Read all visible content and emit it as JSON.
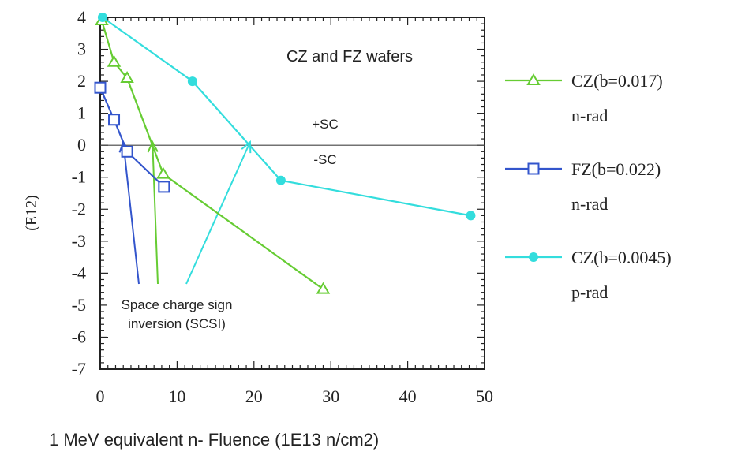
{
  "chart_data": {
    "type": "line",
    "title": "CZ and FZ wafers",
    "xlabel": "1 MeV equivalent n- Fluence (1E13 n/cm2)",
    "ylabel": "(E12)",
    "xlim": [
      0,
      50
    ],
    "ylim": [
      -7,
      4
    ],
    "xticks": [
      0,
      10,
      20,
      30,
      40,
      50
    ],
    "yticks": [
      -7,
      -6,
      -5,
      -4,
      -3,
      -2,
      -1,
      0,
      1,
      2,
      3,
      4
    ],
    "grid": false,
    "legend_position": "right",
    "series": [
      {
        "name": "CZ(b=0.017)",
        "name_line2": "n-rad",
        "marker": "triangle",
        "color": "#66cc33",
        "x": [
          0.2,
          1.8,
          3.5,
          8.2,
          29
        ],
        "y": [
          3.9,
          2.6,
          2.1,
          -0.9,
          -4.5
        ]
      },
      {
        "name": "FZ(b=0.022)",
        "name_line2": "n-rad",
        "marker": "square",
        "color": "#3355cc",
        "x": [
          0,
          1.8,
          3.5,
          8.3
        ],
        "y": [
          1.8,
          0.8,
          -0.2,
          -1.3
        ]
      },
      {
        "name": "CZ(b=0.0045)",
        "name_line2": "p-rad",
        "marker": "circle",
        "color": "#33dddd",
        "x": [
          0.3,
          12,
          23.5,
          48.2
        ],
        "y": [
          4.0,
          2.0,
          -1.1,
          -2.2
        ]
      }
    ],
    "annotations": {
      "above_zero": "+SC",
      "below_zero": "-SC",
      "scsi_line1": "Space charge sign",
      "scsi_line2": "inversion (SCSI)"
    },
    "scsi_arrows": [
      {
        "color": "#3355cc",
        "x": 3.0,
        "y": 0.1
      },
      {
        "color": "#66cc33",
        "x": 6.8,
        "y": 0.1
      },
      {
        "color": "#33dddd",
        "x": 19.5,
        "y": 0.1
      }
    ]
  }
}
